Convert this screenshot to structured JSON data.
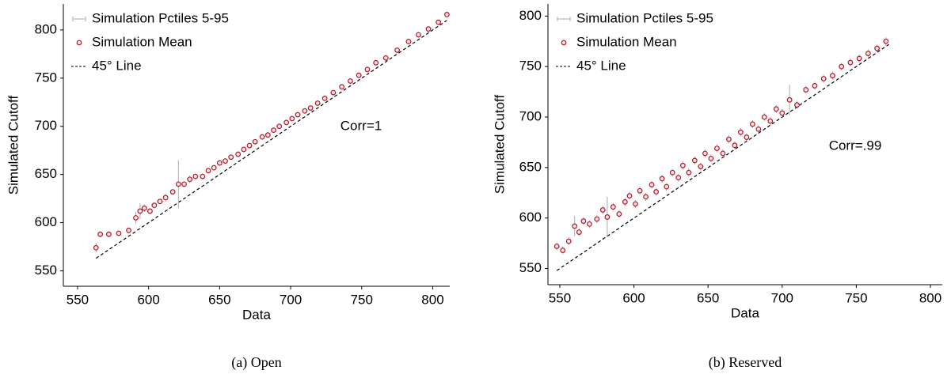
{
  "chart_data": [
    {
      "type": "scatter",
      "caption": "(a) Open",
      "xlabel": "Data",
      "ylabel": "Simulated Cutoff",
      "annotation": "Corr=1",
      "xlim": [
        540,
        812
      ],
      "ylim": [
        534,
        827
      ],
      "xticks": [
        550,
        600,
        650,
        700,
        750,
        800
      ],
      "yticks": [
        550,
        600,
        650,
        700,
        750,
        800
      ],
      "grid": false,
      "legend": "upper left",
      "series": [
        {
          "name": "Simulation Pctiles 5-95",
          "color": "#aaaaaa",
          "errors": [
            5,
            3,
            3,
            3,
            3,
            6,
            8,
            4,
            3,
            3,
            3,
            4,
            3,
            25,
            3,
            4,
            3,
            3,
            3,
            3,
            3,
            3,
            3,
            3,
            3,
            3,
            3,
            3,
            3,
            3,
            3,
            3,
            3,
            3,
            3,
            3,
            3,
            3,
            3,
            3,
            3,
            3,
            3,
            3,
            3,
            3,
            3,
            3,
            3,
            3,
            3
          ]
        },
        {
          "name": "Simulation Mean",
          "color": "#b2182b",
          "x": [
            563,
            566,
            572,
            579,
            586,
            591,
            594,
            597,
            601,
            604,
            608,
            612,
            617,
            621,
            625,
            629,
            633,
            638,
            642,
            646,
            650,
            654,
            658,
            663,
            667,
            671,
            675,
            680,
            684,
            688,
            692,
            697,
            701,
            705,
            710,
            714,
            719,
            724,
            730,
            736,
            742,
            748,
            754,
            760,
            767,
            775,
            783,
            790,
            797,
            804,
            810
          ],
          "values": [
            574,
            588,
            588,
            589,
            592,
            605,
            612,
            615,
            612,
            618,
            622,
            626,
            632,
            640,
            640,
            645,
            648,
            648,
            654,
            657,
            662,
            664,
            668,
            671,
            676,
            680,
            684,
            689,
            691,
            696,
            700,
            704,
            708,
            712,
            716,
            719,
            724,
            729,
            735,
            741,
            747,
            753,
            759,
            766,
            771,
            779,
            788,
            795,
            801,
            808,
            816
          ]
        },
        {
          "name": "45° Line",
          "color": "#000000",
          "x": [
            563,
            810
          ],
          "values": [
            563,
            810
          ]
        }
      ]
    },
    {
      "type": "scatter",
      "caption": "(b) Reserved",
      "xlabel": "Data",
      "ylabel": "Simulated Cutoff",
      "annotation": "Corr=.99",
      "xlim": [
        542,
        808
      ],
      "ylim": [
        534,
        812
      ],
      "xticks": [
        550,
        600,
        650,
        700,
        750,
        800
      ],
      "yticks": [
        550,
        600,
        650,
        700,
        750,
        800
      ],
      "grid": false,
      "legend": "upper left",
      "series": [
        {
          "name": "Simulation Pctiles 5-95",
          "color": "#aaaaaa",
          "errors": [
            4,
            4,
            4,
            10,
            4,
            4,
            4,
            4,
            4,
            20,
            4,
            4,
            4,
            4,
            4,
            4,
            4,
            4,
            4,
            4,
            4,
            4,
            4,
            4,
            4,
            4,
            4,
            4,
            4,
            4,
            4,
            4,
            4,
            4,
            4,
            4,
            4,
            4,
            4,
            4,
            4,
            15,
            4,
            4,
            4,
            4,
            4,
            4,
            4,
            4,
            4,
            4,
            4
          ]
        },
        {
          "name": "Simulation Mean",
          "color": "#b2182b",
          "x": [
            548,
            552,
            556,
            560,
            563,
            566,
            570,
            575,
            579,
            582,
            586,
            590,
            594,
            597,
            601,
            604,
            608,
            612,
            615,
            619,
            622,
            626,
            630,
            633,
            637,
            641,
            645,
            648,
            652,
            656,
            660,
            664,
            668,
            672,
            676,
            680,
            684,
            688,
            692,
            696,
            700,
            705,
            710,
            716,
            722,
            728,
            734,
            740,
            746,
            752,
            758,
            764,
            770
          ],
          "values": [
            572,
            568,
            577,
            592,
            586,
            597,
            594,
            599,
            608,
            601,
            611,
            604,
            616,
            622,
            614,
            627,
            621,
            633,
            626,
            639,
            631,
            645,
            640,
            652,
            645,
            657,
            651,
            664,
            659,
            669,
            664,
            678,
            672,
            685,
            680,
            693,
            688,
            700,
            696,
            708,
            704,
            717,
            712,
            727,
            731,
            738,
            741,
            750,
            754,
            758,
            763,
            768,
            775
          ]
        },
        {
          "name": "45° Line",
          "color": "#000000",
          "x": [
            548,
            772
          ],
          "values": [
            548,
            772
          ]
        }
      ]
    }
  ]
}
